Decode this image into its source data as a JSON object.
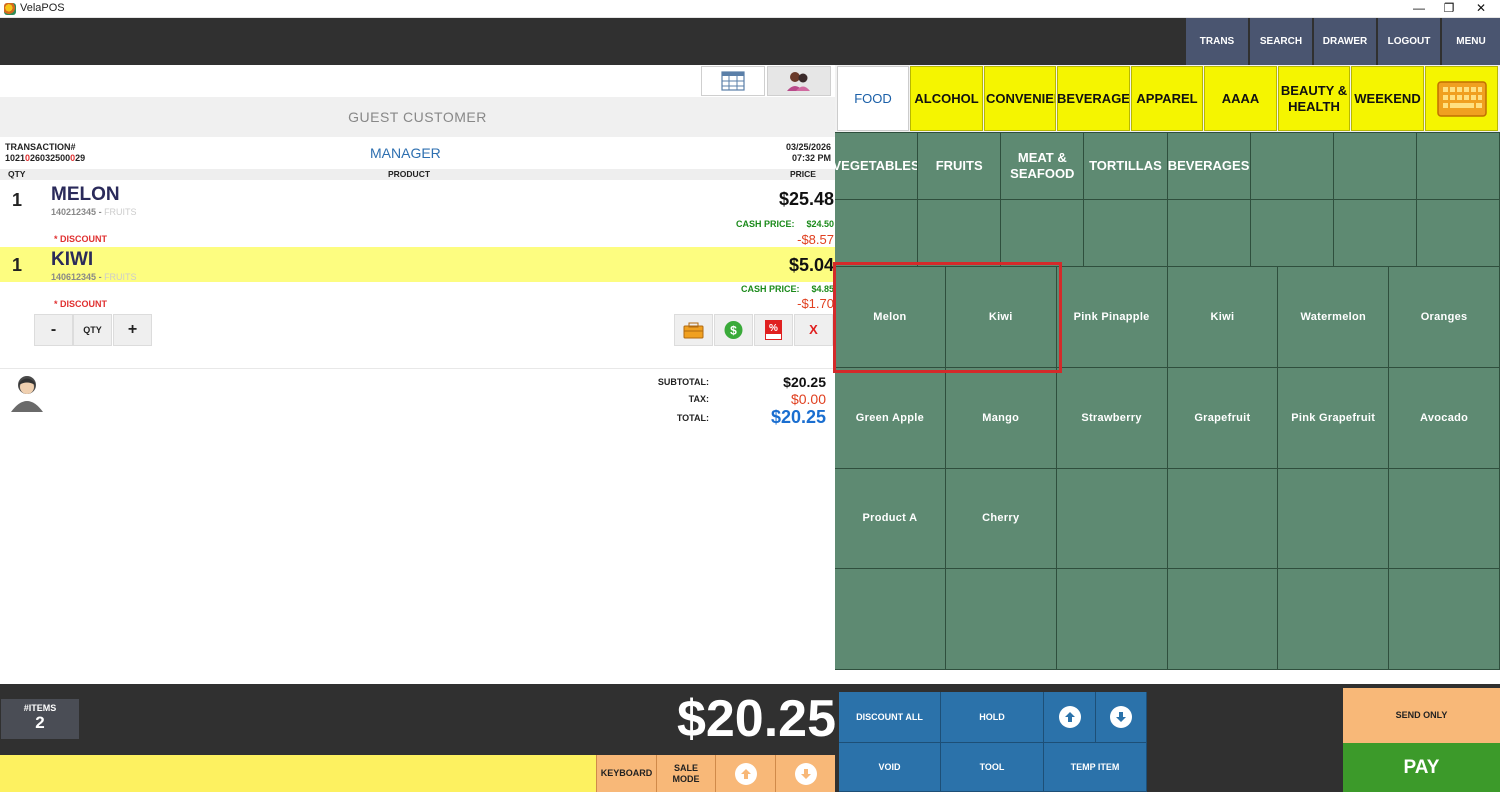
{
  "window": {
    "title": "VelaPOS",
    "minimize": "—",
    "maximize": "❐",
    "close": "✕"
  },
  "topnav": [
    {
      "label": "TRANS",
      "name": "trans-button"
    },
    {
      "label": "SEARCH",
      "name": "search-button"
    },
    {
      "label": "DRAWER",
      "name": "drawer-button"
    },
    {
      "label": "LOGOUT",
      "name": "logout-button"
    },
    {
      "label": "MENU",
      "name": "menu-button"
    }
  ],
  "customer": {
    "name": "GUEST CUSTOMER"
  },
  "transaction": {
    "label": "TRANSACTION#",
    "number_parts": [
      "1021",
      "0",
      "26032500",
      "0",
      "29"
    ],
    "role": "MANAGER",
    "date": "03/25/2026",
    "time": "07:32 PM"
  },
  "columns": {
    "qty": "QTY",
    "product": "PRODUCT",
    "price": "PRICE"
  },
  "items": [
    {
      "qty": "1",
      "name": "MELON",
      "sku": "140212345",
      "category": "FRUITS",
      "price": "$25.48",
      "cash_label": "CASH PRICE:",
      "cash_price": "$24.50",
      "discount_label": "* DISCOUNT",
      "discount": "-$8.57",
      "selected": false
    },
    {
      "qty": "1",
      "name": "KIWI",
      "sku": "140612345",
      "category": "FRUITS",
      "price": "$5.04",
      "cash_label": "CASH PRICE:",
      "cash_price": "$4.85",
      "discount_label": "* DISCOUNT",
      "discount": "-$1.70",
      "selected": true
    }
  ],
  "qty_controls": {
    "minus": "-",
    "qty": "QTY",
    "plus": "+"
  },
  "item_actions": {
    "delete": "X"
  },
  "summary": {
    "subtotal_label": "SUBTOTAL:",
    "subtotal": "$20.25",
    "tax_label": "TAX:",
    "tax": "$0.00",
    "total_label": "TOTAL:",
    "total": "$20.25"
  },
  "categories": [
    "FOOD",
    "ALCOHOL",
    "CONVENIENCE",
    "BEVERAGE",
    "APPAREL",
    "AAAA",
    "BEAUTY & HEALTH",
    "WEEKEND"
  ],
  "active_category": "FOOD",
  "subcategories": [
    "VEGETABLES",
    "FRUITS",
    "MEAT & SEAFOOD",
    "TORTILLAS",
    "BEVERAGES",
    "",
    "",
    "",
    "",
    "",
    "",
    "",
    "",
    "",
    "",
    ""
  ],
  "products": [
    "Melon",
    "Kiwi",
    "Pink Pinapple",
    "Kiwi",
    "Watermelon",
    "Oranges",
    "Green Apple",
    "Mango",
    "Strawberry",
    "Grapefruit",
    "Pink Grapefruit",
    "Avocado",
    "Product A",
    "Cherry",
    "",
    "",
    "",
    "",
    "",
    "",
    "",
    "",
    "",
    ""
  ],
  "footer": {
    "items_label": "#ITEMS",
    "items_count": "2",
    "big_total": "$20.25",
    "keyboard": "KEYBOARD",
    "sale_mode": "SALE MODE",
    "discount_all": "DISCOUNT ALL",
    "hold": "HOLD",
    "void": "VOID",
    "tool": "TOOL",
    "temp_item": "TEMP ITEM",
    "send_only": "SEND ONLY",
    "pay": "PAY"
  },
  "colors": {
    "yellow": "#f5f500",
    "green_tile": "#5e8a72",
    "blue_btn": "#2b72aa",
    "orange_btn": "#f8b878",
    "pay_green": "#3c9a2a",
    "highlight_red": "#d42a2a"
  }
}
